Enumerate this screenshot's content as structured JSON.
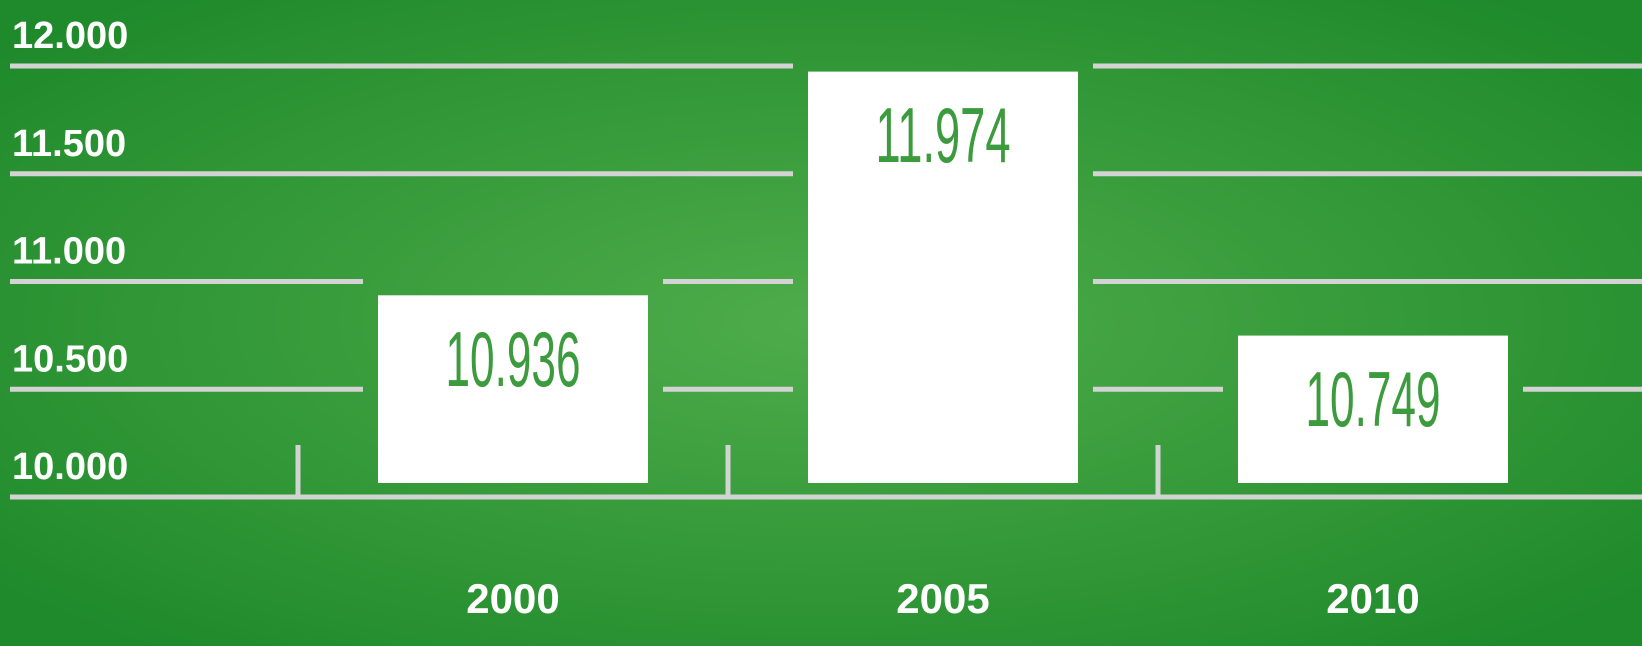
{
  "chart_data": {
    "type": "bar",
    "categories": [
      "2000",
      "2005",
      "2010"
    ],
    "values": [
      10936,
      11974,
      10749
    ],
    "value_labels": [
      "10.936",
      "11.974",
      "10.749"
    ],
    "color": "#ffffff",
    "ylim": [
      10000,
      12000
    ],
    "yticks": [
      {
        "value": 10000,
        "label": "10.000"
      },
      {
        "value": 10500,
        "label": "10.500"
      },
      {
        "value": 11000,
        "label": "11.000"
      },
      {
        "value": 11500,
        "label": "11.500"
      },
      {
        "value": 12000,
        "label": "12.000"
      }
    ],
    "grid": true
  }
}
